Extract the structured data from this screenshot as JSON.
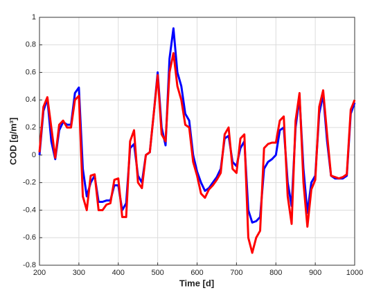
{
  "chart_data": {
    "type": "line",
    "xlabel": "Time [d]",
    "ylabel": "COD [g/m³]",
    "x": [
      200,
      210,
      220,
      230,
      240,
      250,
      260,
      270,
      280,
      290,
      300,
      310,
      320,
      330,
      340,
      350,
      360,
      370,
      380,
      390,
      400,
      410,
      420,
      430,
      440,
      450,
      460,
      470,
      480,
      490,
      500,
      510,
      520,
      530,
      540,
      550,
      560,
      570,
      580,
      590,
      600,
      610,
      620,
      630,
      640,
      650,
      660,
      670,
      680,
      690,
      700,
      710,
      720,
      730,
      740,
      750,
      760,
      770,
      780,
      790,
      800,
      810,
      820,
      830,
      840,
      850,
      860,
      870,
      880,
      890,
      900,
      910,
      920,
      930,
      940,
      950,
      960,
      970,
      980,
      990,
      1000
    ],
    "series": [
      {
        "color": "#0000ff",
        "values": [
          0.0,
          0.32,
          0.41,
          0.1,
          -0.03,
          0.18,
          0.24,
          0.22,
          0.22,
          0.45,
          0.49,
          -0.1,
          -0.3,
          -0.2,
          -0.15,
          -0.34,
          -0.34,
          -0.33,
          -0.33,
          -0.22,
          -0.22,
          -0.4,
          -0.35,
          0.05,
          0.08,
          -0.15,
          -0.2,
          0.0,
          0.02,
          0.3,
          0.6,
          0.2,
          0.07,
          0.7,
          0.92,
          0.6,
          0.5,
          0.3,
          0.25,
          0.0,
          -0.12,
          -0.2,
          -0.26,
          -0.24,
          -0.2,
          -0.16,
          -0.1,
          0.12,
          0.14,
          -0.05,
          -0.08,
          0.05,
          0.1,
          -0.4,
          -0.49,
          -0.48,
          -0.45,
          -0.1,
          -0.05,
          -0.03,
          0.0,
          0.18,
          0.2,
          -0.2,
          -0.37,
          0.2,
          0.42,
          -0.1,
          -0.42,
          -0.2,
          -0.15,
          0.3,
          0.44,
          0.1,
          -0.15,
          -0.17,
          -0.17,
          -0.17,
          -0.15,
          0.3,
          0.38
        ]
      },
      {
        "color": "#ff0000",
        "values": [
          0.02,
          0.35,
          0.42,
          0.2,
          -0.02,
          0.22,
          0.25,
          0.2,
          0.2,
          0.4,
          0.43,
          -0.3,
          -0.4,
          -0.15,
          -0.14,
          -0.4,
          -0.4,
          -0.36,
          -0.35,
          -0.18,
          -0.17,
          -0.45,
          -0.45,
          0.1,
          0.18,
          -0.2,
          -0.24,
          0.0,
          0.02,
          0.3,
          0.58,
          0.15,
          0.1,
          0.6,
          0.74,
          0.5,
          0.4,
          0.22,
          0.2,
          -0.05,
          -0.15,
          -0.28,
          -0.31,
          -0.25,
          -0.22,
          -0.18,
          -0.13,
          0.15,
          0.2,
          -0.1,
          -0.13,
          0.12,
          0.15,
          -0.6,
          -0.71,
          -0.6,
          -0.55,
          0.05,
          0.08,
          0.09,
          0.09,
          0.25,
          0.28,
          -0.3,
          -0.5,
          0.25,
          0.45,
          -0.2,
          -0.52,
          -0.25,
          -0.18,
          0.35,
          0.47,
          0.15,
          -0.15,
          -0.16,
          -0.17,
          -0.16,
          -0.14,
          0.33,
          0.4
        ]
      }
    ],
    "xlim": [
      200,
      1000
    ],
    "xticks": [
      200,
      300,
      400,
      500,
      600,
      700,
      800,
      900,
      1000
    ],
    "ylim": [
      -0.8,
      1
    ],
    "yticks": [
      -0.8,
      -0.6,
      -0.4,
      -0.2,
      0,
      0.2,
      0.4,
      0.6,
      0.8,
      1
    ],
    "grid": true
  }
}
